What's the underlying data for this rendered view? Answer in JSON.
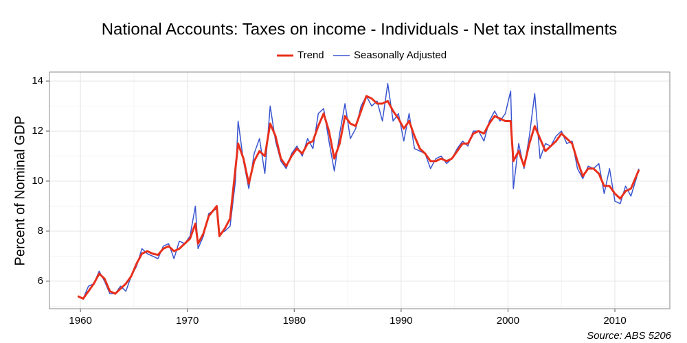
{
  "chart_data": {
    "type": "line",
    "title": "National Accounts: Taxes on income - Individuals - Net tax installments",
    "ylabel": "Percent of Nominal GDP",
    "source": "Source: ABS 5206",
    "legend": "top",
    "grid": true,
    "xlim": [
      1957.1,
      2015.14
    ],
    "ylim": [
      4.9,
      14.36
    ],
    "xticks": [
      1960,
      1970,
      1980,
      1990,
      2000,
      2010
    ],
    "yticks": [
      6,
      8,
      10,
      12,
      14
    ],
    "x": [
      1959.75,
      1960.25,
      1960.75,
      1961.25,
      1961.75,
      1962.25,
      1962.75,
      1963.25,
      1963.75,
      1964.25,
      1964.75,
      1965.25,
      1965.75,
      1966.25,
      1966.75,
      1967.25,
      1967.75,
      1968.25,
      1968.75,
      1969.25,
      1969.75,
      1970.25,
      1970.75,
      1971.0,
      1971.5,
      1972.0,
      1972.75,
      1973.0,
      1973.5,
      1974.0,
      1974.5,
      1974.75,
      1975.25,
      1975.75,
      1976.25,
      1976.75,
      1977.25,
      1977.75,
      1978.25,
      1978.75,
      1979.25,
      1979.75,
      1980.25,
      1980.75,
      1981.25,
      1981.75,
      1982.25,
      1982.75,
      1983.25,
      1983.75,
      1984.25,
      1984.75,
      1985.25,
      1985.75,
      1986.25,
      1986.75,
      1987.25,
      1987.75,
      1988.25,
      1988.75,
      1989.25,
      1989.75,
      1990.25,
      1990.75,
      1991.25,
      1991.75,
      1992.25,
      1992.75,
      1993.25,
      1993.75,
      1994.25,
      1994.75,
      1995.25,
      1995.75,
      1996.25,
      1996.75,
      1997.25,
      1997.75,
      1998.25,
      1998.75,
      1999.25,
      1999.75,
      2000.25,
      2000.5,
      2001.0,
      2001.5,
      2002.0,
      2002.5,
      2003.0,
      2003.5,
      2004.0,
      2004.5,
      2005.0,
      2005.5,
      2006.0,
      2006.5,
      2007.0,
      2007.5,
      2008.0,
      2008.5,
      2009.0,
      2009.5,
      2010.0,
      2010.5,
      2011.0,
      2011.5,
      2012.0,
      2012.25
    ],
    "series": [
      {
        "name": "Trend",
        "color": "#e8301c",
        "values": [
          5.4,
          5.3,
          5.6,
          5.9,
          6.3,
          6.1,
          5.6,
          5.5,
          5.7,
          5.9,
          6.2,
          6.7,
          7.1,
          7.2,
          7.1,
          7.05,
          7.3,
          7.4,
          7.2,
          7.3,
          7.5,
          7.7,
          8.3,
          7.5,
          7.9,
          8.6,
          9.0,
          7.8,
          8.1,
          8.5,
          10.5,
          11.5,
          10.9,
          9.9,
          10.8,
          11.2,
          11.0,
          12.3,
          11.8,
          10.9,
          10.6,
          11.0,
          11.3,
          11.1,
          11.5,
          11.6,
          12.2,
          12.7,
          12.0,
          10.9,
          11.5,
          12.6,
          12.3,
          12.2,
          12.8,
          13.4,
          13.3,
          13.1,
          13.1,
          13.2,
          12.8,
          12.5,
          12.1,
          12.4,
          11.8,
          11.3,
          11.1,
          10.8,
          10.8,
          10.9,
          10.8,
          10.9,
          11.2,
          11.5,
          11.5,
          11.9,
          12.0,
          11.9,
          12.3,
          12.6,
          12.5,
          12.4,
          12.4,
          10.8,
          11.2,
          10.6,
          11.5,
          12.2,
          11.7,
          11.2,
          11.4,
          11.6,
          11.9,
          11.7,
          11.5,
          10.8,
          10.2,
          10.5,
          10.5,
          10.3,
          9.8,
          9.8,
          9.5,
          9.3,
          9.6,
          9.7,
          10.2,
          10.45
        ]
      },
      {
        "name": "Seasonally Adjusted",
        "color": "#3a55d0",
        "values": [
          5.4,
          5.3,
          5.8,
          5.9,
          6.4,
          6.0,
          5.5,
          5.5,
          5.8,
          5.6,
          6.2,
          6.6,
          7.3,
          7.1,
          7.0,
          6.9,
          7.4,
          7.5,
          6.9,
          7.6,
          7.5,
          7.8,
          9.0,
          7.3,
          7.8,
          8.7,
          8.9,
          7.9,
          8.0,
          8.2,
          10.0,
          12.4,
          10.8,
          9.7,
          11.1,
          11.7,
          10.3,
          13.0,
          11.6,
          10.8,
          10.5,
          11.1,
          11.4,
          11.0,
          11.7,
          11.3,
          12.7,
          12.9,
          11.6,
          10.4,
          11.9,
          13.1,
          11.7,
          12.1,
          13.0,
          13.4,
          13.0,
          13.2,
          12.4,
          13.9,
          12.4,
          12.7,
          11.6,
          12.7,
          11.3,
          11.2,
          11.1,
          10.5,
          10.9,
          11.0,
          10.7,
          10.9,
          11.3,
          11.6,
          11.4,
          12.0,
          12.0,
          11.6,
          12.4,
          12.8,
          12.4,
          12.7,
          13.6,
          9.7,
          11.5,
          10.5,
          11.8,
          13.5,
          10.9,
          11.5,
          11.4,
          11.8,
          12.0,
          11.5,
          11.6,
          10.5,
          10.1,
          10.6,
          10.5,
          10.7,
          9.5,
          10.5,
          9.2,
          9.1,
          9.8,
          9.4,
          10.1,
          10.5
        ]
      }
    ]
  }
}
